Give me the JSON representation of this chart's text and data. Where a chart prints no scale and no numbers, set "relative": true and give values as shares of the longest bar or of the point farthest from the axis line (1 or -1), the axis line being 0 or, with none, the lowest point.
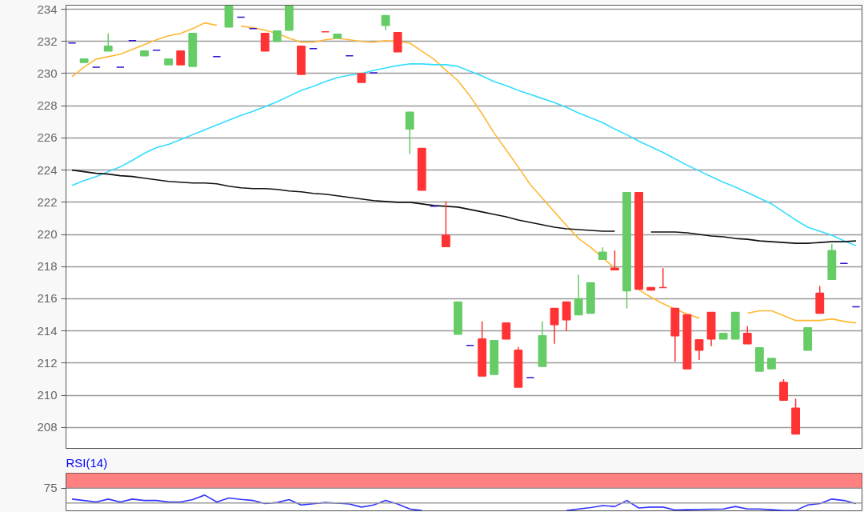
{
  "chart_data": [
    {
      "type": "candlestick",
      "categories": [
        null,
        null,
        null,
        null,
        null,
        null,
        null,
        null,
        null,
        null,
        null,
        null,
        null,
        null,
        null,
        null,
        null,
        null,
        null,
        null,
        null,
        null,
        null,
        null,
        null,
        null,
        null,
        null,
        null,
        null,
        null,
        null,
        null,
        null,
        null,
        null,
        null,
        null,
        null,
        null,
        null,
        null,
        null,
        null,
        null,
        null,
        null,
        null,
        null,
        null,
        null,
        null,
        null,
        null,
        null,
        null,
        null,
        null,
        null,
        null,
        null,
        null,
        null,
        null,
        null,
        null
      ],
      "ohlc": [
        [
          231.9,
          231.9,
          231.9,
          231.9
        ],
        [
          230.7,
          230.9,
          230.7,
          230.9
        ],
        [
          230.4,
          230.4,
          230.4,
          230.4
        ],
        [
          231.4,
          232.5,
          231.4,
          231.7
        ],
        [
          230.4,
          230.4,
          230.4,
          230.4
        ],
        [
          232.05,
          232.05,
          232.05,
          232.05
        ],
        [
          231.1,
          231.4,
          231.1,
          231.4
        ],
        [
          231.45,
          231.45,
          231.45,
          231.45
        ],
        [
          230.55,
          230.9,
          230.55,
          230.9
        ],
        [
          231.4,
          231.4,
          230.55,
          230.55
        ],
        [
          230.45,
          232.5,
          230.45,
          232.5
        ],
        null,
        [
          231.05,
          231.05,
          231.05,
          231.05
        ],
        [
          232.9,
          234.2,
          232.9,
          234.2
        ],
        [
          233.5,
          233.5,
          233.5,
          233.5
        ],
        [
          232.8,
          232.8,
          232.8,
          232.8
        ],
        [
          232.5,
          232.5,
          231.4,
          231.4
        ],
        [
          232.0,
          232.65,
          232.0,
          232.65
        ],
        [
          232.7,
          234.2,
          232.7,
          234.2
        ],
        [
          231.7,
          231.7,
          229.95,
          229.95
        ],
        [
          231.55,
          231.55,
          231.55,
          231.55
        ],
        [
          232.6,
          232.6,
          232.6,
          232.6
        ],
        [
          232.2,
          232.45,
          232.2,
          232.45
        ],
        [
          231.1,
          231.1,
          231.1,
          231.1
        ],
        [
          230.0,
          230.0,
          229.45,
          229.45
        ],
        [
          230.05,
          230.05,
          230.05,
          230.05
        ],
        [
          233.0,
          233.6,
          232.7,
          233.6
        ],
        [
          232.55,
          232.55,
          231.35,
          231.35
        ],
        [
          226.55,
          227.6,
          225.0,
          227.6
        ],
        [
          225.35,
          225.35,
          222.75,
          222.75
        ],
        [
          221.75,
          221.75,
          221.75,
          221.75
        ],
        [
          219.95,
          222.05,
          219.25,
          219.25
        ],
        [
          213.8,
          215.8,
          213.8,
          215.8
        ],
        [
          213.1,
          213.1,
          213.1,
          213.1
        ],
        [
          213.5,
          214.6,
          211.2,
          211.2
        ],
        [
          211.3,
          213.4,
          211.3,
          213.4
        ],
        [
          214.5,
          214.5,
          213.5,
          213.5
        ],
        [
          212.8,
          213.0,
          210.5,
          210.5
        ],
        [
          211.1,
          211.1,
          211.1,
          211.1
        ],
        [
          211.8,
          214.6,
          211.8,
          213.7
        ],
        [
          215.4,
          215.4,
          213.2,
          214.4
        ],
        [
          215.8,
          215.8,
          214.0,
          214.7
        ],
        [
          215.0,
          217.5,
          215.0,
          216.0
        ],
        [
          215.1,
          217.0,
          215.1,
          217.0
        ],
        [
          218.45,
          219.2,
          218.45,
          218.9
        ],
        [
          217.9,
          219.0,
          217.8,
          217.8
        ],
        [
          216.5,
          222.6,
          215.4,
          222.6
        ],
        [
          222.6,
          222.6,
          216.6,
          216.6
        ],
        [
          216.7,
          216.7,
          216.5,
          216.55
        ],
        [
          216.7,
          217.9,
          216.7,
          216.7
        ],
        [
          215.4,
          215.4,
          212.1,
          213.7
        ],
        [
          215.0,
          215.0,
          211.65,
          211.65
        ],
        [
          213.45,
          213.45,
          212.2,
          212.8
        ],
        [
          215.15,
          215.15,
          213.05,
          213.5
        ],
        [
          213.5,
          213.85,
          213.5,
          213.85
        ],
        [
          213.5,
          215.15,
          213.5,
          215.15
        ],
        [
          213.85,
          214.3,
          213.2,
          213.2
        ],
        [
          211.5,
          212.95,
          211.5,
          212.95
        ],
        [
          211.65,
          212.3,
          211.65,
          212.3
        ],
        [
          210.8,
          211.0,
          209.7,
          209.7
        ],
        [
          209.2,
          209.8,
          207.6,
          207.6
        ],
        [
          212.8,
          214.2,
          212.8,
          214.2
        ],
        [
          216.35,
          216.8,
          215.1,
          215.1
        ],
        [
          217.2,
          219.4,
          217.2,
          219.0
        ],
        [
          218.2,
          218.2,
          218.2,
          218.2
        ],
        [
          215.5,
          215.5,
          215.5,
          215.5
        ]
      ],
      "colors": [
        "#3311cc",
        "#66cc66",
        "#3311cc",
        "#66cc66",
        "#3311cc",
        "#3311cc",
        "#66cc66",
        "#3311cc",
        "#66cc66",
        "#ff3333",
        "#66cc66",
        null,
        "#3311cc",
        "#66cc66",
        "#3311cc",
        "#3311cc",
        "#ff3333",
        "#66cc66",
        "#66cc66",
        "#ff3333",
        "#3311cc",
        "#ff3333",
        "#66cc66",
        "#3311cc",
        "#ff3333",
        "#3311cc",
        "#66cc66",
        "#ff3333",
        "#66cc66",
        "#ff3333",
        "#3311cc",
        "#ff3333",
        "#66cc66",
        "#3311cc",
        "#ff3333",
        "#66cc66",
        "#ff3333",
        "#ff3333",
        "#3311cc",
        "#66cc66",
        "#ff3333",
        "#ff3333",
        "#66cc66",
        "#66cc66",
        "#66cc66",
        "#ff3333",
        "#66cc66",
        "#ff3333",
        "#ff3333",
        "#ff3333",
        "#ff3333",
        "#ff3333",
        "#ff3333",
        "#ff3333",
        "#66cc66",
        "#66cc66",
        "#ff3333",
        "#66cc66",
        "#66cc66",
        "#ff3333",
        "#ff3333",
        "#66cc66",
        "#ff3333",
        "#66cc66",
        "#3311cc",
        "#3311cc"
      ],
      "series": [
        {
          "type": "line",
          "color": "#ffb833",
          "values": [
            229.8,
            230.4,
            230.9,
            231.05,
            231.2,
            231.5,
            231.8,
            232.1,
            232.35,
            232.5,
            232.8,
            233.15,
            233.0,
            null,
            232.95,
            232.85,
            232.7,
            232.5,
            232.2,
            231.95,
            231.95,
            232.1,
            232.2,
            232.1,
            232.0,
            231.95,
            232.05,
            232.0,
            231.9,
            231.4,
            230.9,
            230.2,
            229.55,
            228.6,
            227.5,
            226.3,
            225.25,
            224.2,
            223.1,
            222.25,
            221.4,
            220.55,
            219.75,
            219.2,
            218.55,
            217.9,
            null,
            216.55,
            216.1,
            215.7,
            215.35,
            215.05,
            214.8,
            null,
            null,
            null,
            215.1,
            215.25,
            215.25,
            214.95,
            214.65,
            214.65,
            214.65,
            214.75,
            214.6,
            214.5
          ]
        },
        {
          "type": "line",
          "color": "#33ddff",
          "values": [
            223.05,
            223.35,
            223.6,
            223.9,
            224.2,
            224.6,
            225.05,
            225.4,
            225.6,
            225.9,
            226.2,
            226.5,
            226.8,
            227.1,
            227.4,
            227.65,
            227.95,
            228.25,
            228.6,
            228.95,
            229.2,
            229.5,
            229.75,
            229.9,
            230.0,
            230.2,
            230.35,
            230.5,
            230.6,
            230.6,
            230.55,
            230.55,
            230.45,
            230.15,
            229.85,
            229.5,
            229.25,
            228.95,
            228.7,
            228.45,
            228.2,
            227.9,
            227.55,
            227.25,
            226.95,
            226.55,
            226.2,
            225.8,
            225.45,
            225.1,
            224.7,
            224.3,
            223.95,
            223.6,
            223.25,
            222.95,
            222.6,
            222.25,
            221.9,
            221.4,
            220.9,
            220.45,
            220.2,
            219.95,
            219.6,
            219.3
          ]
        },
        {
          "type": "line",
          "color": "#111111",
          "values": [
            224.0,
            223.9,
            223.8,
            223.75,
            223.65,
            223.6,
            223.5,
            223.4,
            223.3,
            223.25,
            223.2,
            223.2,
            223.15,
            223.0,
            222.9,
            222.85,
            222.85,
            222.8,
            222.7,
            222.65,
            222.55,
            222.5,
            222.4,
            222.3,
            222.2,
            222.1,
            222.05,
            222.0,
            222.0,
            221.9,
            221.8,
            221.75,
            221.7,
            221.55,
            221.4,
            221.25,
            221.1,
            220.9,
            220.75,
            220.6,
            220.45,
            220.35,
            220.3,
            220.25,
            220.2,
            220.2,
            null,
            null,
            220.15,
            220.15,
            220.15,
            220.1,
            220.0,
            219.9,
            219.85,
            219.75,
            219.7,
            219.6,
            219.55,
            219.5,
            219.45,
            219.45,
            219.5,
            219.55,
            219.55,
            219.6
          ]
        }
      ],
      "ylim": [
        206.7,
        234.25
      ],
      "yticks": [
        208,
        210,
        212,
        214,
        216,
        218,
        220,
        222,
        224,
        226,
        228,
        230,
        232,
        234
      ],
      "grid": "y",
      "tick_labels": "y"
    },
    {
      "type": "line",
      "title": "RSI(14)",
      "categories": [
        null,
        null,
        null,
        null,
        null,
        null,
        null,
        null,
        null,
        null,
        null,
        null,
        null,
        null,
        null,
        null,
        null,
        null,
        null,
        null,
        null,
        null,
        null,
        null,
        null,
        null,
        null,
        null,
        null,
        null,
        null,
        null,
        null,
        null,
        null,
        null,
        null,
        null,
        null,
        null,
        null,
        null,
        null,
        null,
        null,
        null,
        null,
        null,
        null,
        null,
        null,
        null,
        null,
        null,
        null,
        null,
        null,
        null,
        null,
        null,
        null,
        null,
        null,
        null,
        null,
        null
      ],
      "series": [
        {
          "color": "#3333ff",
          "values": [
            0.74,
            0.65,
            0.55,
            0.74,
            0.55,
            0.74,
            0.65,
            0.65,
            0.55,
            0.55,
            0.71,
            1,
            0.55,
            0.81,
            0.72,
            0.65,
            0.45,
            0.52,
            0.71,
            0.36,
            0.44,
            0.52,
            0.47,
            0.42,
            0.22,
            0.36,
            0.65,
            0.42,
            0.1,
            0,
            null,
            null,
            null,
            null,
            null,
            null,
            null,
            null,
            null,
            null,
            null,
            0,
            0.1,
            0.19,
            0.32,
            0.26,
            0.65,
            0.16,
            0.22,
            0.22,
            0.03,
            0.05,
            0.07,
            0.08,
            0.1,
            0.26,
            0.1,
            0.1,
            0.05,
            0,
            0,
            0.36,
            0.45,
            0.74,
            0.65,
            0.45
          ]
        }
      ],
      "relative": true,
      "bands": [
        {
          "axis": "y",
          "from": 1.45,
          "to": 2.42,
          "color": "#ff8080"
        }
      ],
      "ref_lines": [
        {
          "axis": "y",
          "value": 0.48,
          "color": "#999999"
        }
      ],
      "annotations": [
        "75"
      ],
      "tick_labels": "y"
    }
  ]
}
